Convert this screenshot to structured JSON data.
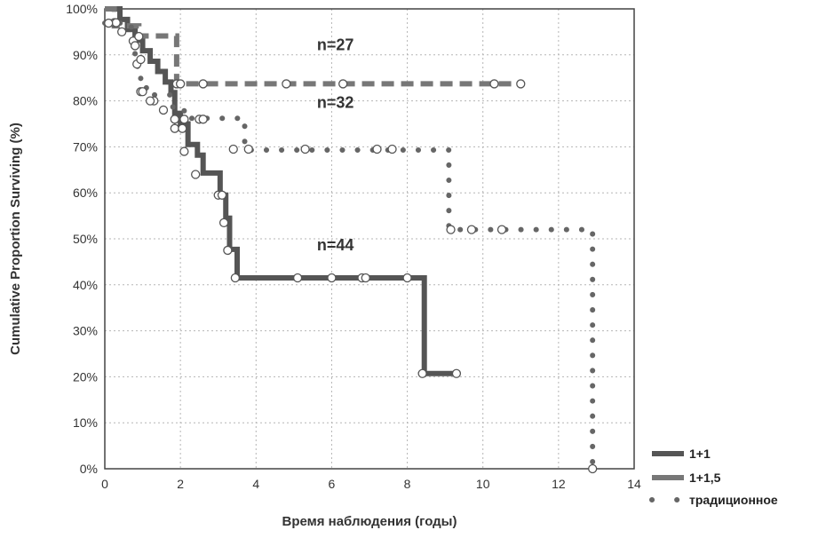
{
  "chart_data": {
    "type": "line",
    "title": "",
    "xlabel": "Время наблюдения (годы)",
    "ylabel": "Cumulative Proportion Surviving (%)",
    "xlim": [
      0,
      14
    ],
    "ylim": [
      0,
      100
    ],
    "x_ticks": [
      "0",
      "2",
      "4",
      "6",
      "8",
      "10",
      "12",
      "14"
    ],
    "y_ticks": [
      "0%",
      "10%",
      "20%",
      "30%",
      "40%",
      "50%",
      "60%",
      "70%",
      "80%",
      "90%",
      "100%"
    ],
    "x_tick_values": [
      0,
      2,
      4,
      6,
      8,
      10,
      12,
      14
    ],
    "y_tick_values": [
      0,
      10,
      20,
      30,
      40,
      50,
      60,
      70,
      80,
      90,
      100
    ],
    "grid": true,
    "legend_position": "bottom-right-outside",
    "series": [
      {
        "name": "1+1",
        "style": "solid",
        "color": "#555555",
        "steps": [
          [
            0,
            100
          ],
          [
            0.4,
            97.7
          ],
          [
            0.6,
            95.5
          ],
          [
            0.8,
            93.2
          ],
          [
            1.0,
            90.9
          ],
          [
            1.2,
            88.6
          ],
          [
            1.4,
            86.4
          ],
          [
            1.6,
            84.1
          ],
          [
            1.75,
            81.8
          ],
          [
            1.85,
            77.3
          ],
          [
            2.0,
            75
          ],
          [
            2.2,
            70.5
          ],
          [
            2.45,
            68.2
          ],
          [
            2.6,
            64.3
          ],
          [
            3.05,
            59.5
          ],
          [
            3.2,
            54.5
          ],
          [
            3.3,
            47.7
          ],
          [
            3.5,
            41.5
          ],
          [
            8.45,
            20.7
          ],
          [
            9.4,
            20.7
          ]
        ],
        "censored": [
          [
            0.25,
            97
          ],
          [
            0.45,
            95
          ],
          [
            0.75,
            93
          ],
          [
            0.85,
            88
          ],
          [
            0.95,
            82
          ],
          [
            1.3,
            80
          ],
          [
            1.55,
            78
          ],
          [
            1.85,
            74
          ],
          [
            2.05,
            74
          ],
          [
            2.1,
            69
          ],
          [
            2.4,
            64
          ],
          [
            3.0,
            59.5
          ],
          [
            3.1,
            59.5
          ],
          [
            3.15,
            53.5
          ],
          [
            3.25,
            47.5
          ],
          [
            3.45,
            41.5
          ],
          [
            5.1,
            41.5
          ],
          [
            6.0,
            41.5
          ],
          [
            6.8,
            41.5
          ],
          [
            6.9,
            41.5
          ],
          [
            8.0,
            41.5
          ],
          [
            8.4,
            20.7
          ],
          [
            9.3,
            20.7
          ]
        ]
      },
      {
        "name": "1+1,5",
        "style": "dashed",
        "color": "#777777",
        "steps": [
          [
            0,
            100
          ],
          [
            0.25,
            96.3
          ],
          [
            0.9,
            96.3
          ],
          [
            0.9,
            94.1
          ],
          [
            1.9,
            94.1
          ],
          [
            1.9,
            83.7
          ],
          [
            11.05,
            83.7
          ]
        ],
        "censored": [
          [
            0.3,
            97
          ],
          [
            0.9,
            94
          ],
          [
            1.9,
            83.7
          ],
          [
            2.0,
            83.7
          ],
          [
            2.6,
            83.7
          ],
          [
            4.8,
            83.7
          ],
          [
            6.3,
            83.7
          ],
          [
            10.3,
            83.7
          ],
          [
            11.0,
            83.7
          ]
        ]
      },
      {
        "name": "традиционное",
        "style": "dotted",
        "color": "#666666",
        "steps": [
          [
            0,
            96.9
          ],
          [
            0.7,
            96.9
          ],
          [
            0.7,
            93.8
          ],
          [
            0.8,
            93.8
          ],
          [
            0.8,
            87.5
          ],
          [
            0.95,
            87.5
          ],
          [
            0.95,
            84.4
          ],
          [
            1.1,
            84.4
          ],
          [
            1.1,
            81.3
          ],
          [
            1.8,
            81.3
          ],
          [
            1.8,
            78.1
          ],
          [
            2.1,
            78.1
          ],
          [
            2.1,
            76.2
          ],
          [
            3.7,
            76.2
          ],
          [
            3.7,
            69.3
          ],
          [
            9.1,
            69.3
          ],
          [
            9.1,
            52.0
          ],
          [
            12.9,
            52.0
          ],
          [
            12.9,
            0
          ]
        ],
        "censored": [
          [
            0.1,
            96.9
          ],
          [
            0.8,
            92
          ],
          [
            0.95,
            89
          ],
          [
            1.0,
            82
          ],
          [
            1.2,
            80
          ],
          [
            1.85,
            76
          ],
          [
            2.1,
            76
          ],
          [
            2.5,
            76
          ],
          [
            2.6,
            76
          ],
          [
            3.4,
            69.5
          ],
          [
            3.8,
            69.5
          ],
          [
            5.3,
            69.5
          ],
          [
            7.2,
            69.5
          ],
          [
            7.6,
            69.5
          ],
          [
            9.15,
            52
          ],
          [
            9.7,
            52
          ],
          [
            10.5,
            52
          ],
          [
            12.9,
            0
          ]
        ]
      }
    ],
    "annotations": [
      {
        "text": "n=27",
        "x": 6.1,
        "y": 91
      },
      {
        "text": "n=32",
        "x": 6.1,
        "y": 78.5
      },
      {
        "text": "n=44",
        "x": 6.1,
        "y": 47.5
      }
    ]
  }
}
